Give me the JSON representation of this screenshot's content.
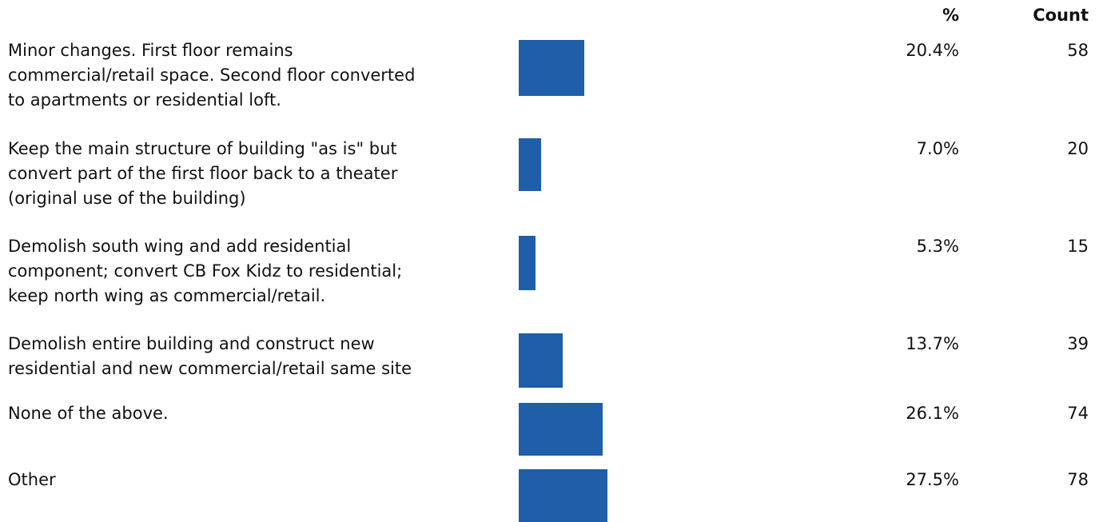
{
  "chart_data": {
    "type": "bar",
    "orientation": "horizontal",
    "headers": {
      "percent": "%",
      "count": "Count"
    },
    "categories": [
      [
        "Minor changes. First floor remains",
        "commercial/retail space. Second floor converted",
        "to apartments or residential loft."
      ],
      [
        "Keep the main structure of building \"as is\" but",
        "convert part of the first floor back to a theater",
        "(original use of the building)"
      ],
      [
        "Demolish south wing and add residential",
        "component; convert CB Fox Kidz to residential;",
        "keep north wing as commercial/retail."
      ],
      [
        "Demolish entire building and construct new",
        "residential and new commercial/retail same site"
      ],
      [
        "None of the above."
      ],
      [
        "Other"
      ]
    ],
    "values": [
      20.4,
      7.0,
      5.3,
      13.7,
      26.1,
      27.5
    ],
    "percent_labels": [
      "20.4%",
      "7.0%",
      "5.3%",
      "13.7%",
      "26.1%",
      "27.5%"
    ],
    "counts": [
      "58",
      "20",
      "15",
      "39",
      "74",
      "78"
    ],
    "bar_color": "#1f5ea8",
    "grid": false
  }
}
